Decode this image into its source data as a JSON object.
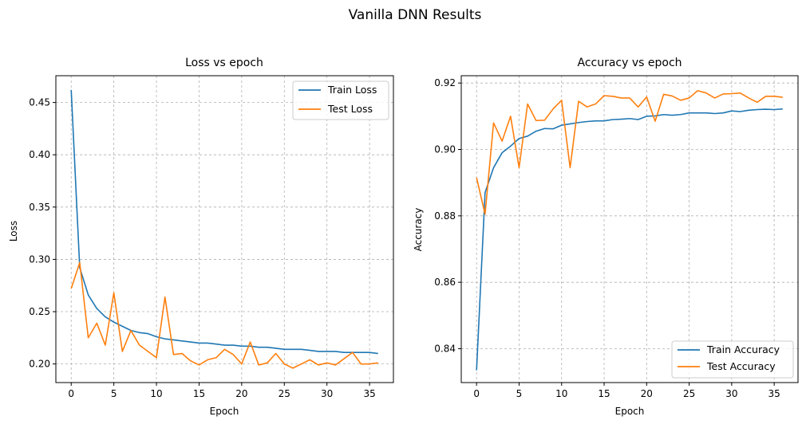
{
  "figure": {
    "title": "Vanilla DNN Results"
  },
  "colors": {
    "train": "#1f77b4",
    "test": "#ff7f0e"
  },
  "chart_data": [
    {
      "type": "line",
      "title": "Loss vs epoch",
      "xlabel": "Epoch",
      "ylabel": "Loss",
      "xlim": [
        -1.8,
        37.8
      ],
      "ylim": [
        0.1822,
        0.4756
      ],
      "xticks": [
        0,
        5,
        10,
        15,
        20,
        25,
        30,
        35
      ],
      "yticks": [
        0.2,
        0.25,
        0.3,
        0.35,
        0.4,
        0.45
      ],
      "ytick_labels": [
        "0.20",
        "0.25",
        "0.30",
        "0.35",
        "0.40",
        "0.45"
      ],
      "grid": true,
      "legend_position": "top-right",
      "x": [
        0,
        1,
        2,
        3,
        4,
        5,
        6,
        7,
        8,
        9,
        10,
        11,
        12,
        13,
        14,
        15,
        16,
        17,
        18,
        19,
        20,
        21,
        22,
        23,
        24,
        25,
        26,
        27,
        28,
        29,
        30,
        31,
        32,
        33,
        34,
        35,
        36
      ],
      "series": [
        {
          "name": "Train Loss",
          "values": [
            0.462,
            0.292,
            0.266,
            0.253,
            0.245,
            0.24,
            0.236,
            0.232,
            0.23,
            0.229,
            0.226,
            0.224,
            0.223,
            0.222,
            0.221,
            0.22,
            0.22,
            0.219,
            0.218,
            0.218,
            0.217,
            0.217,
            0.216,
            0.216,
            0.215,
            0.214,
            0.214,
            0.214,
            0.213,
            0.212,
            0.212,
            0.212,
            0.211,
            0.211,
            0.211,
            0.211,
            0.21
          ]
        },
        {
          "name": "Test Loss",
          "values": [
            0.272,
            0.297,
            0.225,
            0.239,
            0.218,
            0.268,
            0.212,
            0.232,
            0.218,
            0.212,
            0.206,
            0.264,
            0.209,
            0.21,
            0.203,
            0.199,
            0.204,
            0.206,
            0.214,
            0.209,
            0.2,
            0.221,
            0.199,
            0.201,
            0.21,
            0.2,
            0.196,
            0.2,
            0.204,
            0.199,
            0.201,
            0.199,
            0.205,
            0.211,
            0.2,
            0.2,
            0.201
          ]
        }
      ]
    },
    {
      "type": "line",
      "title": "Accuracy vs epoch",
      "xlabel": "Epoch",
      "ylabel": "Accuracy",
      "xlim": [
        -1.8,
        37.8
      ],
      "ylim": [
        0.8298,
        0.9222
      ],
      "xticks": [
        0,
        5,
        10,
        15,
        20,
        25,
        30,
        35
      ],
      "yticks": [
        0.84,
        0.86,
        0.88,
        0.9,
        0.92
      ],
      "ytick_labels": [
        "0.84",
        "0.86",
        "0.88",
        "0.90",
        "0.92"
      ],
      "grid": true,
      "legend_position": "bottom-right",
      "x": [
        0,
        1,
        2,
        3,
        4,
        5,
        6,
        7,
        8,
        9,
        10,
        11,
        12,
        13,
        14,
        15,
        16,
        17,
        18,
        19,
        20,
        21,
        22,
        23,
        24,
        25,
        26,
        27,
        28,
        29,
        30,
        31,
        32,
        33,
        34,
        35,
        36
      ],
      "series": [
        {
          "name": "Train Accuracy",
          "values": [
            0.8335,
            0.887,
            0.8945,
            0.899,
            0.901,
            0.9033,
            0.904,
            0.9055,
            0.9063,
            0.9062,
            0.9073,
            0.9077,
            0.9081,
            0.9084,
            0.9086,
            0.9086,
            0.909,
            0.9091,
            0.9093,
            0.909,
            0.91,
            0.9101,
            0.9105,
            0.9103,
            0.9105,
            0.911,
            0.911,
            0.911,
            0.9108,
            0.911,
            0.9116,
            0.9114,
            0.9118,
            0.912,
            0.9121,
            0.912,
            0.9122
          ]
        },
        {
          "name": "Test Accuracy",
          "values": [
            0.8915,
            0.8805,
            0.908,
            0.9025,
            0.91,
            0.8945,
            0.9137,
            0.9087,
            0.9088,
            0.9122,
            0.9148,
            0.8945,
            0.9145,
            0.9128,
            0.9137,
            0.9162,
            0.916,
            0.9155,
            0.9155,
            0.9128,
            0.9158,
            0.9085,
            0.9166,
            0.9161,
            0.9148,
            0.9155,
            0.9177,
            0.917,
            0.9155,
            0.9167,
            0.9168,
            0.917,
            0.9155,
            0.9142,
            0.916,
            0.916,
            0.9157
          ]
        }
      ]
    }
  ]
}
